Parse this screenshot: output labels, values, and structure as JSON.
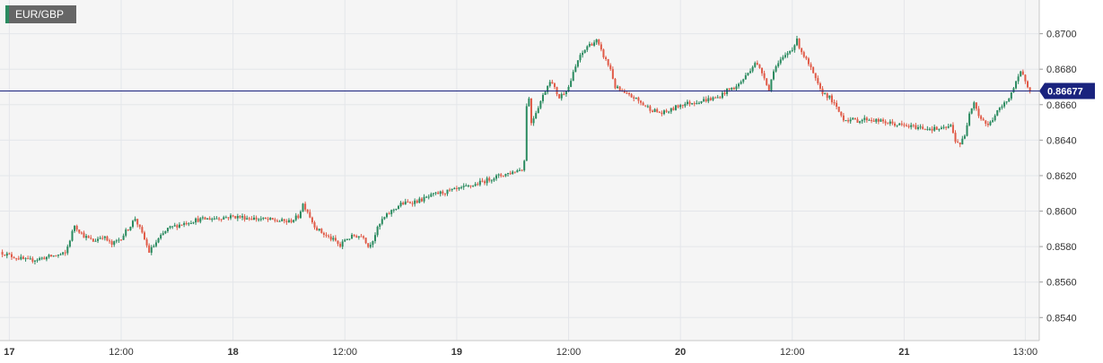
{
  "symbol": "EUR/GBP",
  "colors": {
    "up": "#2a8a5f",
    "down": "#e05a47",
    "price_line": "#1a237e",
    "grid": "#e4e6ea",
    "plot_bg": "#f5f5f5"
  },
  "chart_data": {
    "type": "candlestick",
    "title": "EUR/GBP",
    "current_price": 0.86677,
    "current_price_label": "0.86677",
    "ylim": [
      0.8527,
      0.8719
    ],
    "y_ticks": [
      "0.8540",
      "0.8560",
      "0.8580",
      "0.8600",
      "0.8620",
      "0.8640",
      "0.8660",
      "0.8680",
      "0.8700"
    ],
    "x_ticks": [
      "17",
      "12:00",
      "18",
      "12:00",
      "19",
      "12:00",
      "20",
      "12:00",
      "21",
      "13:00"
    ],
    "x_tick_hours": [
      0,
      12,
      24,
      36,
      48,
      60,
      72,
      84,
      96,
      109
    ],
    "x_range_hours": [
      -1,
      110.5
    ],
    "grid": true,
    "price_path": [
      [
        -1,
        0.8577
      ],
      [
        0,
        0.8575
      ],
      [
        2,
        0.8572
      ],
      [
        4,
        0.8574
      ],
      [
        6,
        0.8576
      ],
      [
        7,
        0.8592
      ],
      [
        8,
        0.8586
      ],
      [
        9,
        0.8583
      ],
      [
        10,
        0.8586
      ],
      [
        11,
        0.8581
      ],
      [
        12,
        0.8585
      ],
      [
        13,
        0.8592
      ],
      [
        13.5,
        0.8596
      ],
      [
        14,
        0.859
      ],
      [
        14.5,
        0.8584
      ],
      [
        15,
        0.8577
      ],
      [
        16,
        0.8584
      ],
      [
        17,
        0.859
      ],
      [
        18,
        0.8592
      ],
      [
        20,
        0.8595
      ],
      [
        22,
        0.8596
      ],
      [
        24,
        0.8597
      ],
      [
        26,
        0.8596
      ],
      [
        28,
        0.8595
      ],
      [
        30,
        0.8594
      ],
      [
        31,
        0.8597
      ],
      [
        31.5,
        0.8604
      ],
      [
        32,
        0.86
      ],
      [
        32.5,
        0.8594
      ],
      [
        33,
        0.859
      ],
      [
        34,
        0.8586
      ],
      [
        35,
        0.8583
      ],
      [
        35.5,
        0.858
      ],
      [
        36,
        0.8584
      ],
      [
        37,
        0.8586
      ],
      [
        38,
        0.8586
      ],
      [
        38.5,
        0.858
      ],
      [
        39,
        0.8584
      ],
      [
        39.5,
        0.859
      ],
      [
        40,
        0.8595
      ],
      [
        41,
        0.86
      ],
      [
        42,
        0.8604
      ],
      [
        44,
        0.8606
      ],
      [
        46,
        0.861
      ],
      [
        48,
        0.8612
      ],
      [
        50,
        0.8615
      ],
      [
        52,
        0.8619
      ],
      [
        54,
        0.8622
      ],
      [
        55,
        0.8624
      ],
      [
        55.2,
        0.8622
      ],
      [
        55.5,
        0.866
      ],
      [
        55.8,
        0.8664
      ],
      [
        56,
        0.865
      ],
      [
        57,
        0.8662
      ],
      [
        58,
        0.8674
      ],
      [
        59,
        0.8664
      ],
      [
        60,
        0.867
      ],
      [
        61,
        0.8685
      ],
      [
        62,
        0.8693
      ],
      [
        63,
        0.8696
      ],
      [
        63.5,
        0.869
      ],
      [
        64,
        0.8685
      ],
      [
        64.5,
        0.868
      ],
      [
        65,
        0.867
      ],
      [
        66,
        0.8666
      ],
      [
        67,
        0.8664
      ],
      [
        68,
        0.866
      ],
      [
        69,
        0.8657
      ],
      [
        70,
        0.8655
      ],
      [
        71,
        0.8657
      ],
      [
        72,
        0.866
      ],
      [
        74,
        0.8662
      ],
      [
        76,
        0.8664
      ],
      [
        77,
        0.8668
      ],
      [
        78,
        0.867
      ],
      [
        79,
        0.8676
      ],
      [
        80,
        0.8684
      ],
      [
        81,
        0.8676
      ],
      [
        81.5,
        0.8668
      ],
      [
        82,
        0.868
      ],
      [
        83,
        0.8686
      ],
      [
        84,
        0.8692
      ],
      [
        84.5,
        0.8696
      ],
      [
        85,
        0.869
      ],
      [
        86,
        0.868
      ],
      [
        86.5,
        0.8674
      ],
      [
        87,
        0.8668
      ],
      [
        88,
        0.8664
      ],
      [
        89,
        0.8656
      ],
      [
        89.5,
        0.8652
      ],
      [
        91,
        0.8651
      ],
      [
        92,
        0.8652
      ],
      [
        94,
        0.865
      ],
      [
        96,
        0.8648
      ],
      [
        98,
        0.8647
      ],
      [
        100,
        0.8646
      ],
      [
        101,
        0.8648
      ],
      [
        101.5,
        0.864
      ],
      [
        102,
        0.8638
      ],
      [
        102.5,
        0.8642
      ],
      [
        103,
        0.8656
      ],
      [
        103.5,
        0.8662
      ],
      [
        104,
        0.8654
      ],
      [
        105,
        0.8648
      ],
      [
        106,
        0.8656
      ],
      [
        107,
        0.8662
      ],
      [
        108,
        0.8672
      ],
      [
        108.5,
        0.8678
      ],
      [
        109,
        0.8674
      ],
      [
        109.5,
        0.86677
      ]
    ]
  }
}
